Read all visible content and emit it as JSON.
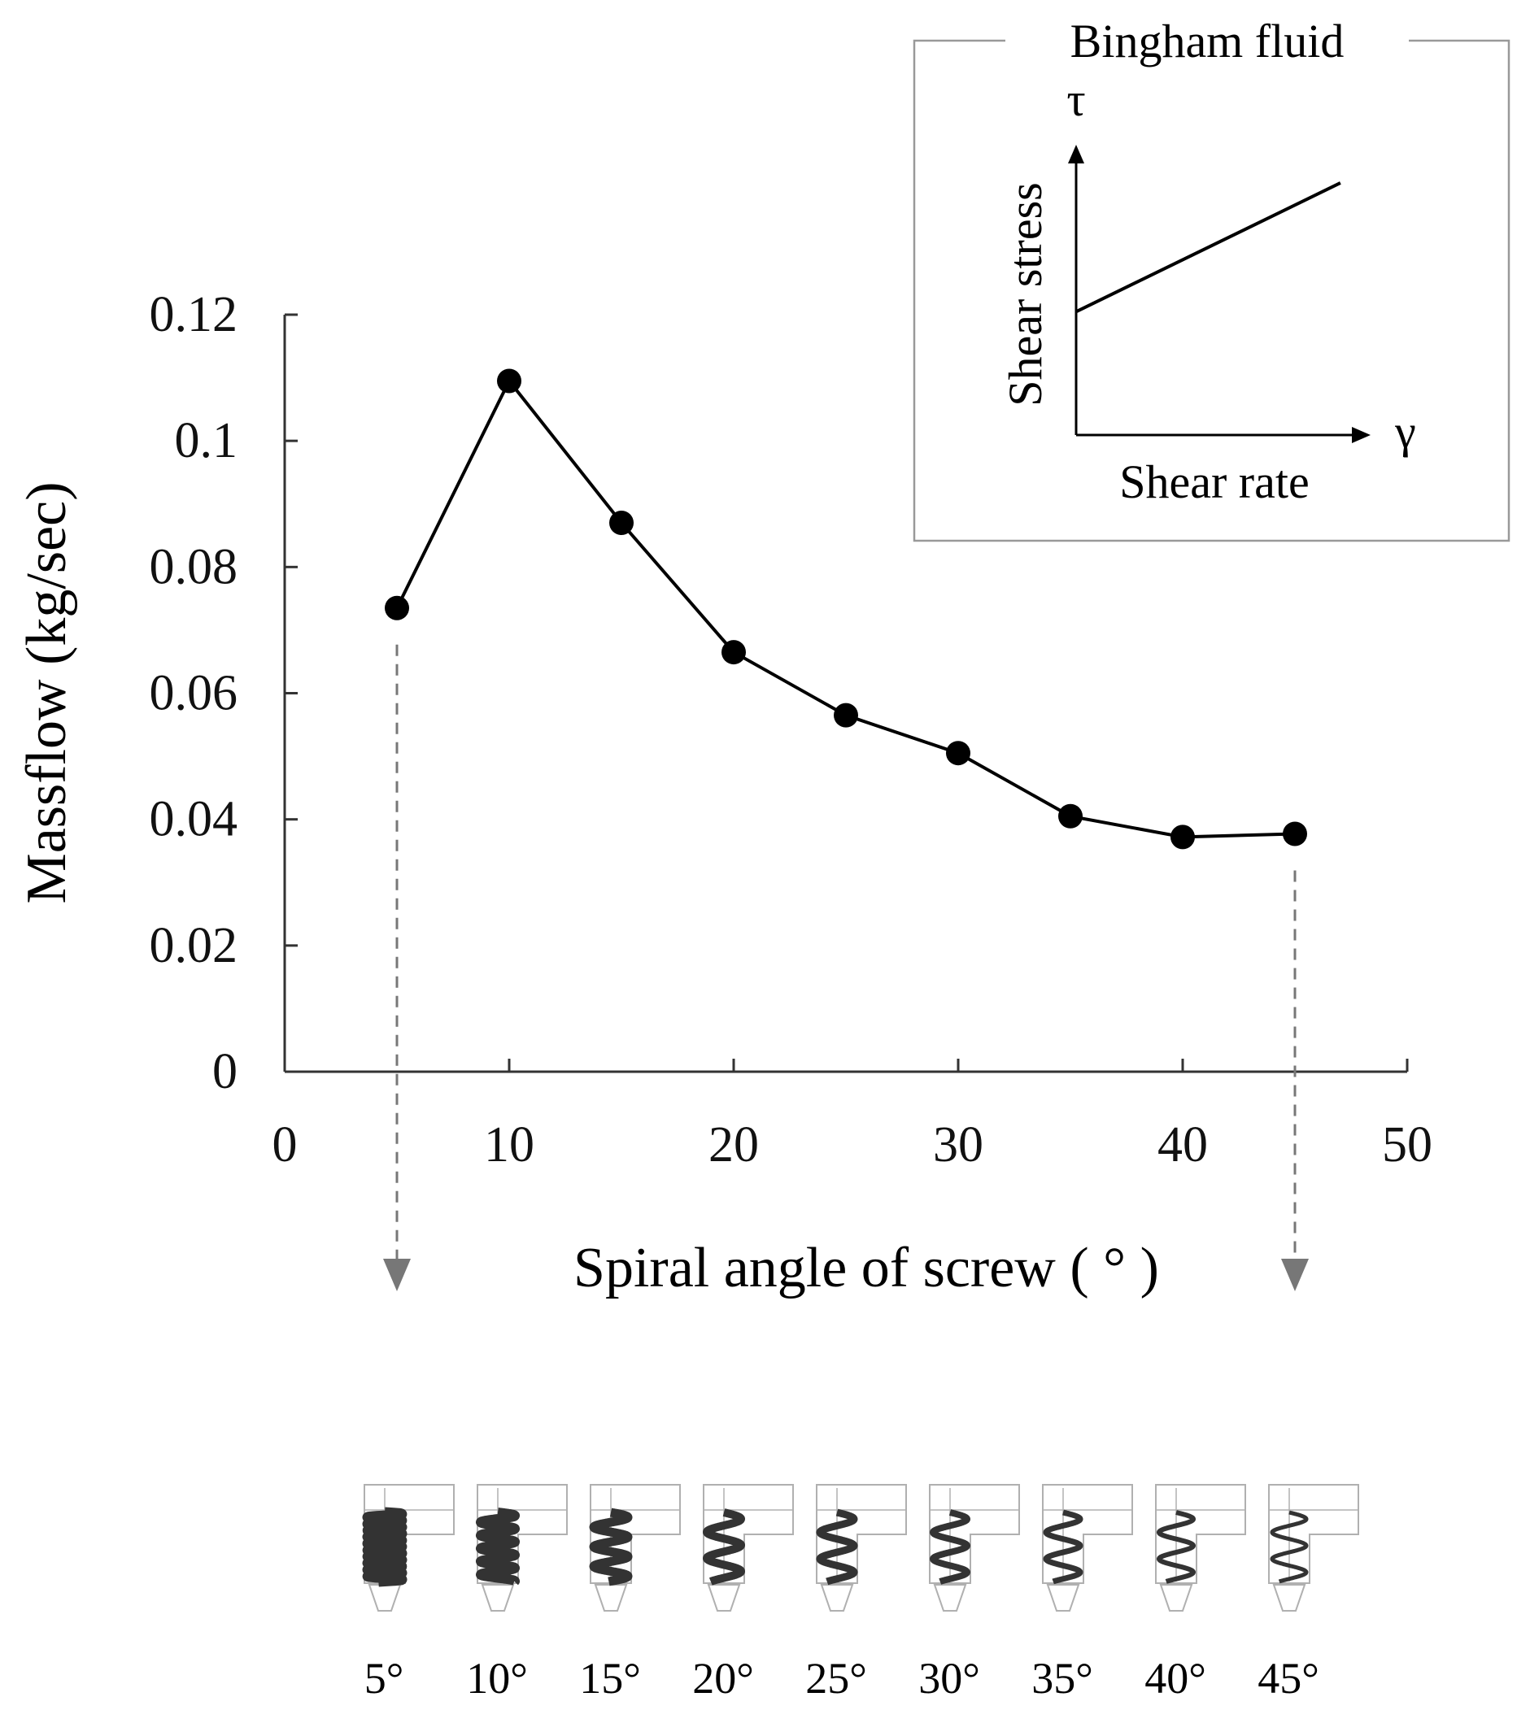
{
  "chart_data": {
    "type": "line",
    "title": "",
    "xlabel": "Spiral angle of screw ( ° )",
    "ylabel": "Massflow (kg/sec)",
    "xlim": [
      0,
      50
    ],
    "ylim": [
      0,
      0.12
    ],
    "x_ticks": [
      0,
      10,
      20,
      30,
      40,
      50
    ],
    "y_ticks": [
      "0",
      "0.02",
      "0.04",
      "0.06",
      "0.08",
      "0.1",
      "0.12"
    ],
    "grid": false,
    "series": [
      {
        "name": "Massflow",
        "x": [
          5,
          10,
          15,
          20,
          25,
          30,
          35,
          40,
          45
        ],
        "y": [
          0.0735,
          0.1095,
          0.087,
          0.0665,
          0.0565,
          0.0505,
          0.0405,
          0.0372,
          0.0377
        ],
        "color": "#000000"
      }
    ],
    "callouts": [
      5,
      45
    ]
  },
  "inset": {
    "title": "Bingham fluid",
    "tau_symbol": "τ",
    "gamma_symbol": "γ",
    "ylabel": "Shear stress",
    "xlabel": "Shear rate",
    "yield_stress_fraction": 0.45,
    "line_end_fraction": 0.92
  },
  "screws": [
    {
      "angle": 5,
      "label": "5°"
    },
    {
      "angle": 10,
      "label": "10°"
    },
    {
      "angle": 15,
      "label": "15°"
    },
    {
      "angle": 20,
      "label": "20°"
    },
    {
      "angle": 25,
      "label": "25°"
    },
    {
      "angle": 30,
      "label": "30°"
    },
    {
      "angle": 35,
      "label": "35°"
    },
    {
      "angle": 40,
      "label": "40°"
    },
    {
      "angle": 45,
      "label": "45°"
    }
  ],
  "colors": {
    "line": "#000000",
    "axis": "#333333",
    "callout": "#777777",
    "inset_border": "#999999",
    "screw_frame": "#b0b0b0",
    "screw_coil": "#333333"
  }
}
